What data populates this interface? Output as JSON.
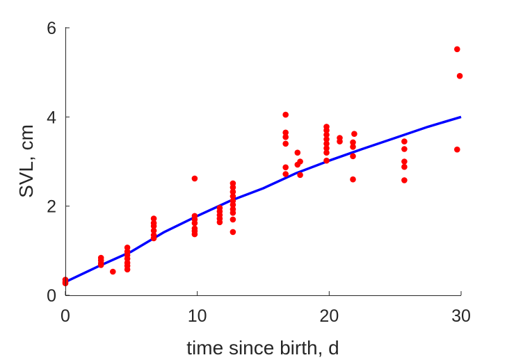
{
  "chart_data": {
    "type": "scatter",
    "xlabel": "time since birth, d",
    "ylabel": "SVL, cm",
    "xlim": [
      0,
      30
    ],
    "ylim": [
      0,
      6
    ],
    "xticks": [
      "0",
      "10",
      "20",
      "30"
    ],
    "yticks": [
      "0",
      "2",
      "4",
      "6"
    ],
    "grid": false,
    "legend": "none",
    "series": [
      {
        "kind": "points",
        "color": "#ff0000",
        "points": [
          {
            "x": 0,
            "y": 0.27
          },
          {
            "x": 0,
            "y": 0.3
          },
          {
            "x": 0,
            "y": 0.35
          },
          {
            "x": 2.7,
            "y": 0.68
          },
          {
            "x": 2.7,
            "y": 0.72
          },
          {
            "x": 2.7,
            "y": 0.78
          },
          {
            "x": 2.7,
            "y": 0.84
          },
          {
            "x": 3.6,
            "y": 0.53
          },
          {
            "x": 4.7,
            "y": 0.58
          },
          {
            "x": 4.7,
            "y": 0.66
          },
          {
            "x": 4.7,
            "y": 0.73
          },
          {
            "x": 4.7,
            "y": 0.82
          },
          {
            "x": 4.7,
            "y": 0.9
          },
          {
            "x": 4.7,
            "y": 0.98
          },
          {
            "x": 4.7,
            "y": 1.07
          },
          {
            "x": 6.7,
            "y": 1.28
          },
          {
            "x": 6.7,
            "y": 1.35
          },
          {
            "x": 6.7,
            "y": 1.45
          },
          {
            "x": 6.7,
            "y": 1.55
          },
          {
            "x": 6.7,
            "y": 1.62
          },
          {
            "x": 6.7,
            "y": 1.72
          },
          {
            "x": 9.8,
            "y": 1.37
          },
          {
            "x": 9.8,
            "y": 1.44
          },
          {
            "x": 9.8,
            "y": 1.5
          },
          {
            "x": 9.8,
            "y": 1.62
          },
          {
            "x": 9.8,
            "y": 1.7
          },
          {
            "x": 9.8,
            "y": 1.78
          },
          {
            "x": 9.8,
            "y": 2.62
          },
          {
            "x": 11.7,
            "y": 1.64
          },
          {
            "x": 11.7,
            "y": 1.72
          },
          {
            "x": 11.7,
            "y": 1.8
          },
          {
            "x": 11.7,
            "y": 1.88
          },
          {
            "x": 11.7,
            "y": 1.96
          },
          {
            "x": 12.7,
            "y": 1.42
          },
          {
            "x": 12.7,
            "y": 1.7
          },
          {
            "x": 12.7,
            "y": 1.85
          },
          {
            "x": 12.7,
            "y": 1.93
          },
          {
            "x": 12.7,
            "y": 2.03
          },
          {
            "x": 12.7,
            "y": 2.12
          },
          {
            "x": 12.7,
            "y": 2.22
          },
          {
            "x": 12.7,
            "y": 2.32
          },
          {
            "x": 12.7,
            "y": 2.42
          },
          {
            "x": 12.7,
            "y": 2.51
          },
          {
            "x": 16.7,
            "y": 2.72
          },
          {
            "x": 16.7,
            "y": 2.87
          },
          {
            "x": 16.7,
            "y": 3.4
          },
          {
            "x": 16.7,
            "y": 3.55
          },
          {
            "x": 16.7,
            "y": 3.65
          },
          {
            "x": 16.7,
            "y": 4.05
          },
          {
            "x": 17.6,
            "y": 2.93
          },
          {
            "x": 17.6,
            "y": 3.2
          },
          {
            "x": 17.8,
            "y": 2.7
          },
          {
            "x": 17.8,
            "y": 3.0
          },
          {
            "x": 19.8,
            "y": 3.02
          },
          {
            "x": 19.8,
            "y": 3.2
          },
          {
            "x": 19.8,
            "y": 3.3
          },
          {
            "x": 19.8,
            "y": 3.4
          },
          {
            "x": 19.8,
            "y": 3.5
          },
          {
            "x": 19.8,
            "y": 3.6
          },
          {
            "x": 19.8,
            "y": 3.7
          },
          {
            "x": 19.8,
            "y": 3.78
          },
          {
            "x": 20.8,
            "y": 3.45
          },
          {
            "x": 20.8,
            "y": 3.53
          },
          {
            "x": 21.8,
            "y": 2.6
          },
          {
            "x": 21.8,
            "y": 3.12
          },
          {
            "x": 21.8,
            "y": 3.33
          },
          {
            "x": 21.8,
            "y": 3.43
          },
          {
            "x": 21.9,
            "y": 3.62
          },
          {
            "x": 25.7,
            "y": 2.58
          },
          {
            "x": 25.7,
            "y": 2.88
          },
          {
            "x": 25.7,
            "y": 3.0
          },
          {
            "x": 25.7,
            "y": 3.28
          },
          {
            "x": 25.7,
            "y": 3.45
          },
          {
            "x": 29.7,
            "y": 3.27
          },
          {
            "x": 29.7,
            "y": 5.52
          },
          {
            "x": 29.9,
            "y": 4.92
          }
        ]
      },
      {
        "kind": "line",
        "color": "#0000ff",
        "x": [
          0,
          2.5,
          5,
          7.5,
          10,
          12.5,
          15,
          17.5,
          20,
          22.5,
          25,
          27.5,
          30
        ],
        "y": [
          0.3,
          0.65,
          0.98,
          1.42,
          1.78,
          2.12,
          2.4,
          2.74,
          3.02,
          3.28,
          3.53,
          3.78,
          4.0
        ]
      }
    ]
  }
}
